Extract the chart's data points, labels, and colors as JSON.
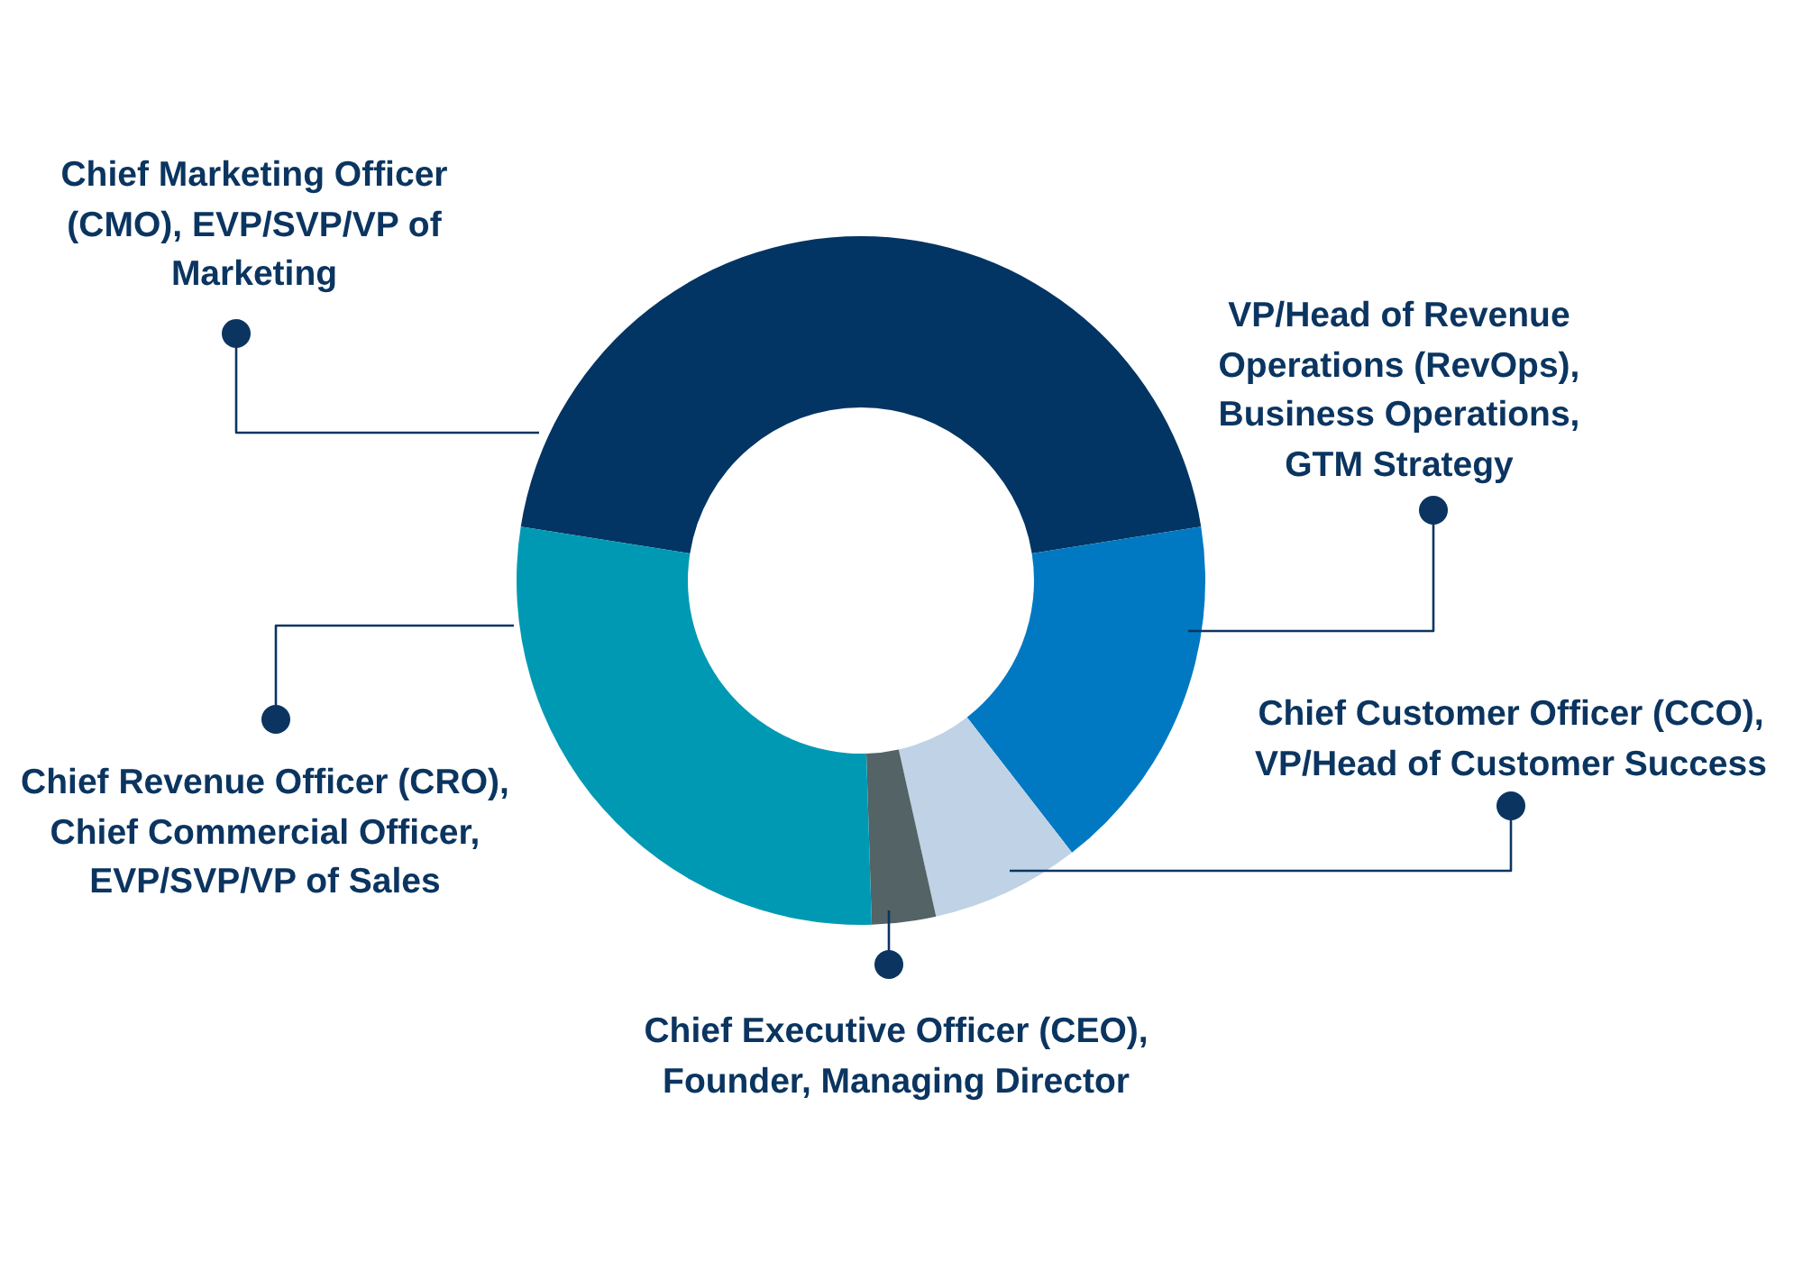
{
  "chart_data": {
    "type": "donut",
    "categories": [
      "Chief Marketing Officer (CMO), EVP/SVP/VP of Marketing",
      "VP/Head of Revenue Operations (RevOps), Business Operations, GTM Strategy",
      "Chief Customer Officer (CCO), VP/Head of Customer Success",
      "Chief Executive Officer (CEO), Founder, Managing Director",
      "Chief Revenue Officer (CRO), Chief Commercial Officer, EVP/SVP/VP of Sales"
    ],
    "values": [
      45,
      17,
      7,
      3,
      28
    ],
    "colors": [
      "#023563",
      "#0079c2",
      "#bfd2e6",
      "#536366",
      "#0099b3"
    ]
  }
}
